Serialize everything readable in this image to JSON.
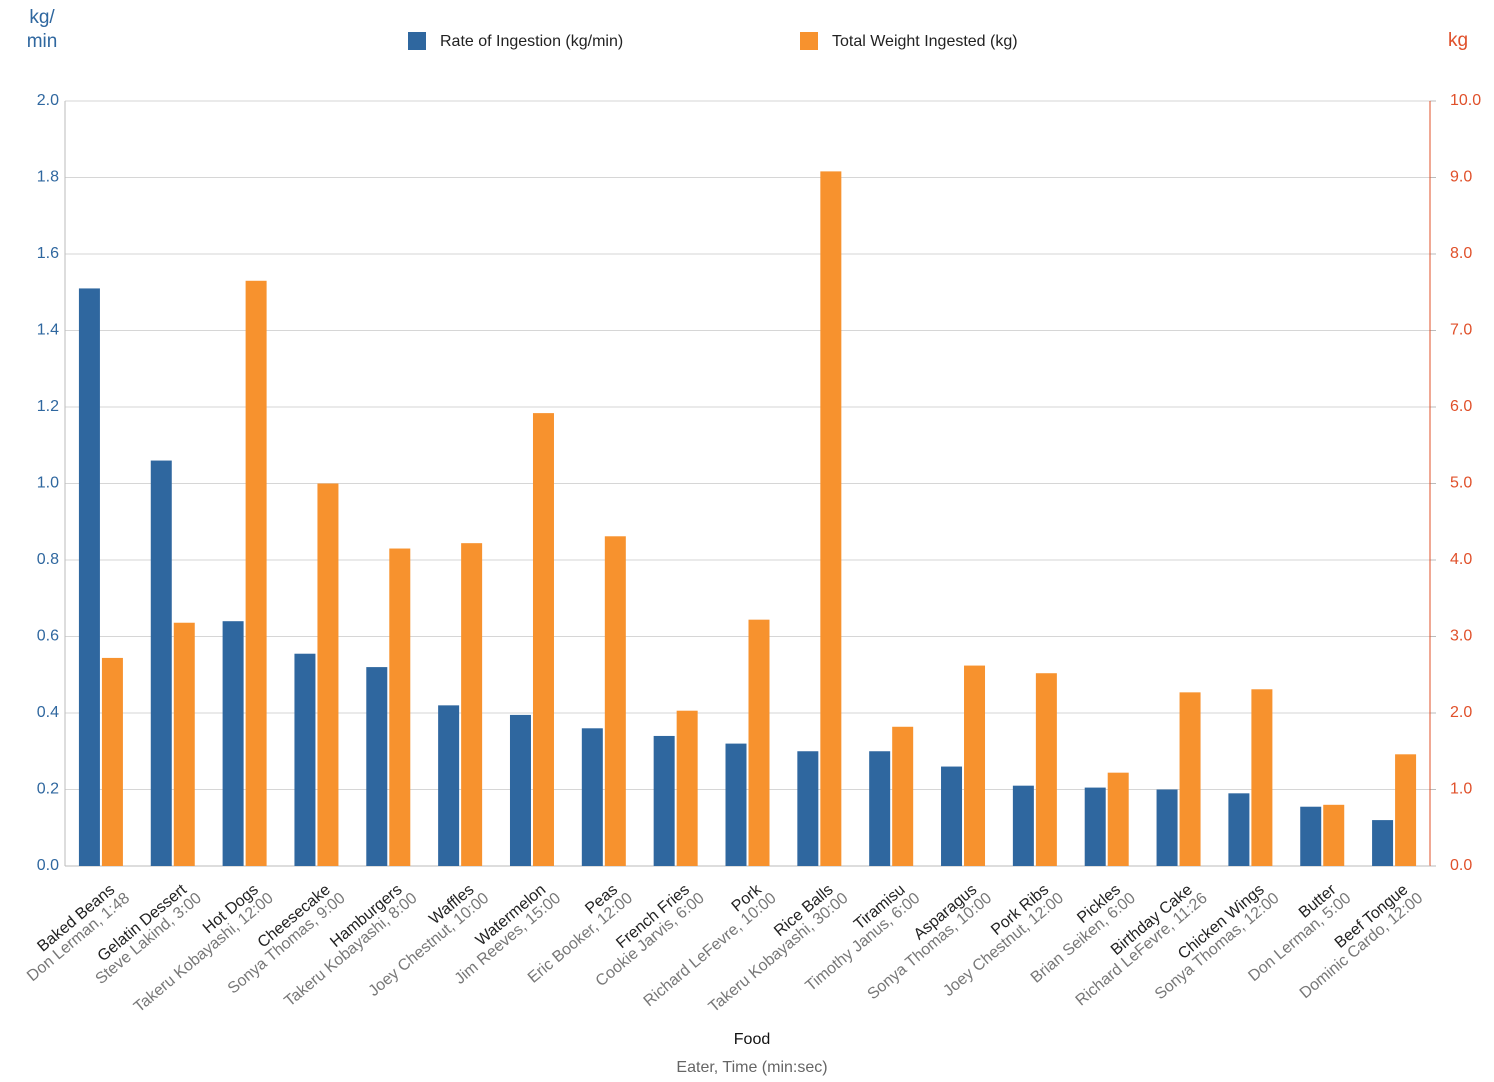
{
  "chart_data": {
    "type": "bar",
    "x_label": "Food",
    "x_sublabel": "Eater, Time (min:sec)",
    "y_label": "kg/ min",
    "y2_label": "kg",
    "categories": [
      "Baked Beans",
      "Gelatin Dessert",
      "Hot Dogs",
      "Cheesecake",
      "Hamburgers",
      "Waffles",
      "Watermelon",
      "Peas",
      "French Fries",
      "Pork",
      "Rice Balls",
      "Tiramisu",
      "Asparagus",
      "Pork Ribs",
      "Pickles",
      "Birthday Cake",
      "Chicken Wings",
      "Butter",
      "Beef Tongue"
    ],
    "category_sublabels": [
      "Don Lerman, 1:48",
      "Steve Lakind, 3:00",
      "Takeru Kobayashi, 12:00",
      "Sonya Thomas, 9:00",
      "Takeru Kobayashi, 8:00",
      "Joey Chestnut, 10:00",
      "Jim Reeves, 15:00",
      "Eric Booker, 12:00",
      "Cookie Jarvis, 6:00",
      "Richard LeFevre, 10:00",
      "Takeru Kobayashi, 30:00",
      "Timothy Janus, 6:00",
      "Sonya Thomas, 10:00",
      "Joey Chestnut, 12:00",
      "Brian Seiken, 6:00",
      "Richard LeFevre, 11:26",
      "Sonya Thomas, 12:00",
      "Don Lerman, 5:00",
      "Dominic Cardo, 12:00"
    ],
    "series": [
      {
        "name": "Rate of Ingestion (kg/min)",
        "color": "#2f679f",
        "axis": "y",
        "values": [
          1.51,
          1.06,
          0.64,
          0.555,
          0.52,
          0.42,
          0.395,
          0.36,
          0.34,
          0.32,
          0.3,
          0.3,
          0.26,
          0.21,
          0.205,
          0.2,
          0.19,
          0.155,
          0.12
        ]
      },
      {
        "name": "Total Weight Ingested (kg)",
        "color": "#f7922e",
        "axis": "y2",
        "values": [
          2.72,
          3.18,
          7.65,
          5.0,
          4.15,
          4.22,
          5.92,
          4.31,
          2.03,
          3.22,
          9.08,
          1.82,
          2.62,
          2.52,
          1.22,
          2.27,
          2.31,
          0.8,
          1.46
        ]
      }
    ],
    "ylim": [
      0,
      2
    ],
    "yticks": [
      {
        "value": 0,
        "label": "0.0"
      },
      0.2,
      0.4,
      0.6,
      0.8,
      {
        "value": 1,
        "label": "1.0"
      },
      1.2,
      1.4,
      1.6,
      1.8,
      {
        "value": 2,
        "label": "2.0"
      }
    ],
    "y2lim": [
      0,
      10
    ],
    "y2ticks": [
      {
        "value": 0,
        "label": "0.0"
      },
      {
        "value": 1,
        "label": "1.0"
      },
      {
        "value": 2,
        "label": "2.0"
      },
      {
        "value": 3,
        "label": "3.0"
      },
      {
        "value": 4,
        "label": "4.0"
      },
      {
        "value": 5,
        "label": "5.0"
      },
      {
        "value": 6,
        "label": "6.0"
      },
      {
        "value": 7,
        "label": "7.0"
      },
      {
        "value": 8,
        "label": "8.0"
      },
      {
        "value": 9,
        "label": "9.0"
      },
      {
        "value": 10,
        "label": "10.0"
      }
    ],
    "grid": true,
    "legend": "top"
  }
}
